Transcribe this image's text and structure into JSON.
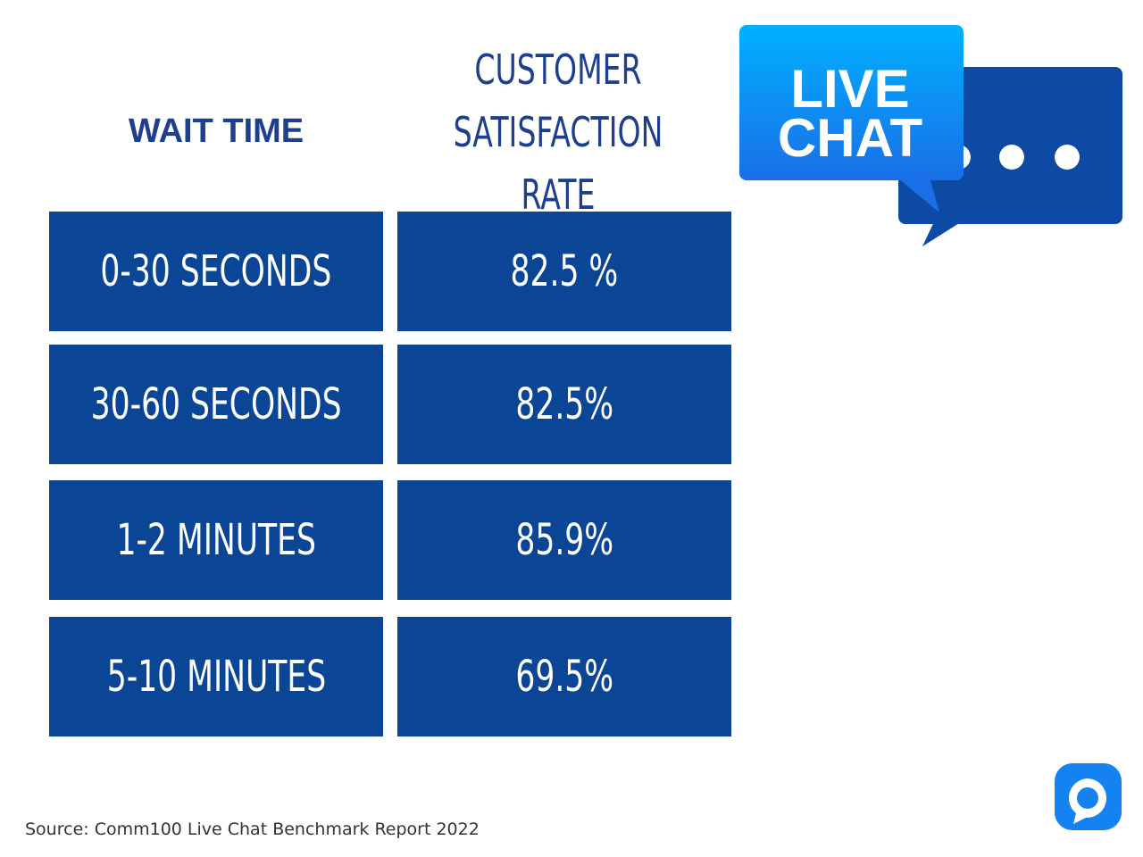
{
  "table": {
    "headers": [
      "WAIT TIME",
      "CUSTOMER SATISFACTION RATE"
    ],
    "rows": [
      [
        "0-30 SECONDS",
        "82.5 %"
      ],
      [
        "30-60 SECONDS",
        "82.5%"
      ],
      [
        "1-2 MINUTES",
        "85.9%"
      ],
      [
        "5-10 MINUTES",
        "69.5%"
      ]
    ]
  },
  "logo": {
    "lines": [
      "LIVE",
      "CHAT"
    ]
  },
  "source": "Source: Comm100 Live Chat Benchmark Report 2022"
}
